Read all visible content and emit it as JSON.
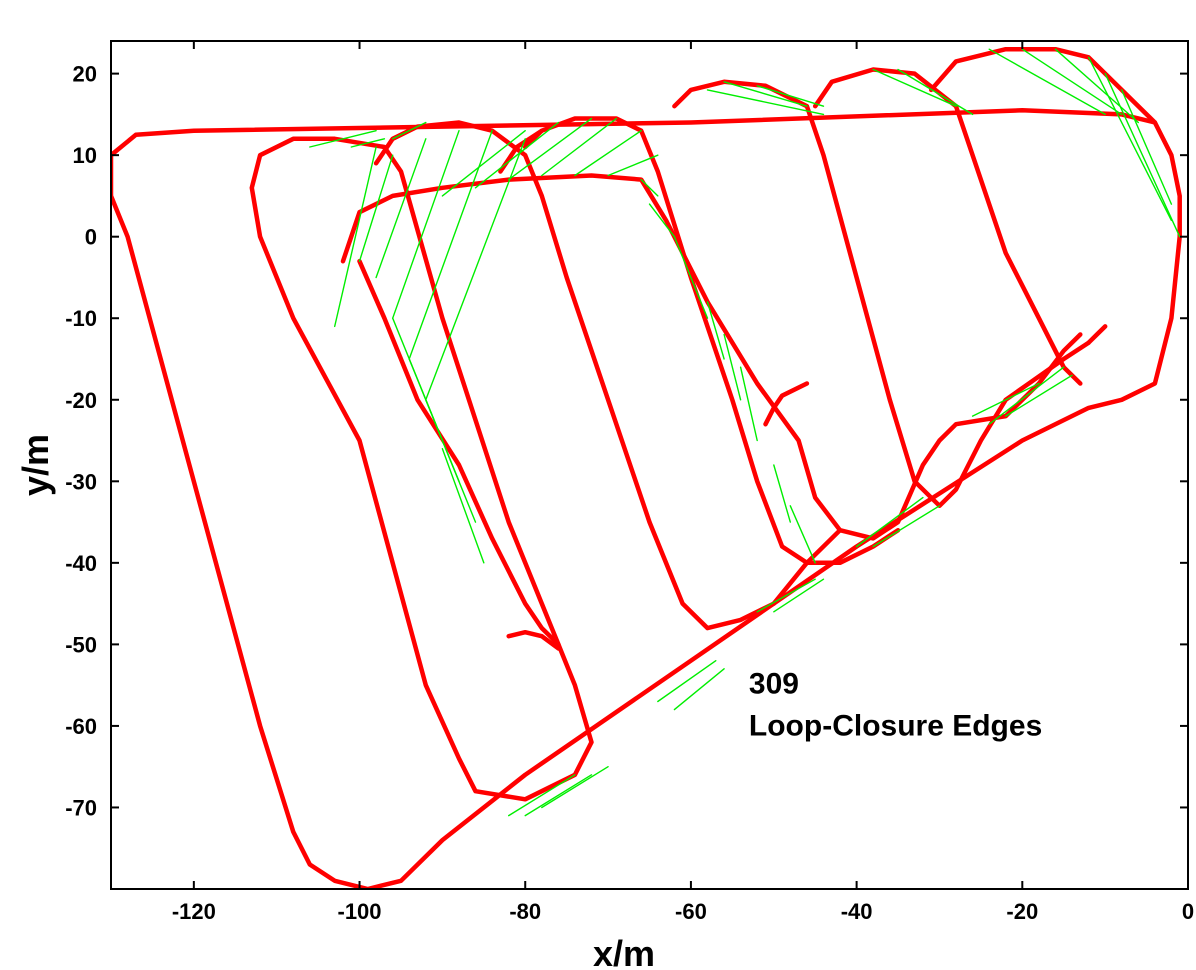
{
  "chart_data": {
    "type": "line",
    "title": "",
    "xlabel": "x/m",
    "ylabel": "y/m",
    "xlim": [
      -130,
      0
    ],
    "ylim": [
      -80,
      24
    ],
    "xticks": [
      -120,
      -100,
      -80,
      -60,
      -40,
      -20,
      0
    ],
    "yticks": [
      20,
      10,
      0,
      -10,
      -20,
      -30,
      -40,
      -50,
      -60,
      -70
    ],
    "grid": false,
    "legend": "none",
    "annotation": {
      "count": "309",
      "label": "Loop-Closure Edges",
      "x": -53,
      "y": -56
    },
    "series": [
      {
        "color": "#ff0000",
        "segments": [
          [
            [
              -130,
              10
            ],
            [
              -127,
              12.5
            ],
            [
              -120,
              13
            ],
            [
              -60,
              14
            ],
            [
              -20,
              15.5
            ],
            [
              -8,
              15
            ],
            [
              -4,
              14
            ],
            [
              -2,
              10
            ],
            [
              -1,
              5
            ],
            [
              -1,
              0
            ],
            [
              -2,
              -10
            ],
            [
              -4,
              -18
            ],
            [
              -8,
              -20
            ],
            [
              -12,
              -21
            ],
            [
              -20,
              -25
            ],
            [
              -40,
              -38
            ],
            [
              -60,
              -52
            ],
            [
              -80,
              -66
            ],
            [
              -90,
              -74
            ],
            [
              -95,
              -79
            ],
            [
              -99,
              -80
            ],
            [
              -103,
              -79
            ],
            [
              -106,
              -77
            ],
            [
              -108,
              -73
            ],
            [
              -112,
              -60
            ],
            [
              -120,
              -30
            ],
            [
              -128,
              0
            ],
            [
              -130,
              5
            ],
            [
              -130,
              10
            ]
          ],
          [
            [
              -113,
              6
            ],
            [
              -112,
              10
            ],
            [
              -108,
              12
            ],
            [
              -103,
              12
            ],
            [
              -97,
              11
            ],
            [
              -95,
              8
            ],
            [
              -90,
              -10
            ],
            [
              -82,
              -35
            ],
            [
              -78,
              -45
            ],
            [
              -76,
              -50
            ],
            [
              -74,
              -55
            ],
            [
              -72,
              -62
            ],
            [
              -74,
              -66
            ],
            [
              -80,
              -69
            ],
            [
              -86,
              -68
            ],
            [
              -88,
              -64
            ],
            [
              -92,
              -55
            ],
            [
              -100,
              -25
            ],
            [
              -108,
              -10
            ],
            [
              -112,
              0
            ],
            [
              -113,
              6
            ]
          ],
          [
            [
              -102,
              -3
            ],
            [
              -100,
              3
            ],
            [
              -96,
              5
            ],
            [
              -90,
              6
            ],
            [
              -82,
              7
            ],
            [
              -72,
              7.5
            ],
            [
              -66,
              7
            ],
            [
              -63,
              2
            ],
            [
              -58,
              -8
            ],
            [
              -52,
              -18
            ],
            [
              -47,
              -25
            ],
            [
              -45,
              -32
            ],
            [
              -42,
              -36
            ],
            [
              -38,
              -37
            ],
            [
              -35,
              -35
            ],
            [
              -32,
              -28
            ],
            [
              -30,
              -25
            ],
            [
              -28,
              -23
            ],
            [
              -22,
              -22
            ],
            [
              -18,
              -18
            ],
            [
              -15,
              -14
            ],
            [
              -13,
              -12
            ]
          ],
          [
            [
              -51,
              -23
            ],
            [
              -50,
              -21
            ],
            [
              -49,
              -19.5
            ],
            [
              -46,
              -18
            ]
          ],
          [
            [
              -82,
              -49
            ],
            [
              -80,
              -48.5
            ],
            [
              -78,
              -49
            ],
            [
              -76,
              -50.5
            ]
          ],
          [
            [
              -100,
              -3
            ],
            [
              -97,
              -10
            ],
            [
              -93,
              -20
            ],
            [
              -88,
              -28
            ],
            [
              -84,
              -37
            ],
            [
              -80,
              -45
            ],
            [
              -78,
              -48
            ],
            [
              -76,
              -50
            ]
          ],
          [
            [
              -98,
              9
            ],
            [
              -96,
              12
            ],
            [
              -93,
              13.5
            ],
            [
              -88,
              14
            ],
            [
              -84,
              13
            ],
            [
              -80,
              10
            ],
            [
              -78,
              5
            ],
            [
              -75,
              -5
            ],
            [
              -70,
              -20
            ],
            [
              -65,
              -35
            ],
            [
              -61,
              -45
            ],
            [
              -58,
              -48
            ],
            [
              -54,
              -47
            ],
            [
              -50,
              -45
            ],
            [
              -46,
              -40
            ],
            [
              -42,
              -36
            ]
          ],
          [
            [
              -80,
              11
            ],
            [
              -78,
              13
            ],
            [
              -74,
              14.5
            ],
            [
              -69,
              14.5
            ],
            [
              -66,
              13
            ],
            [
              -64,
              8
            ],
            [
              -60,
              -5
            ],
            [
              -55,
              -20
            ],
            [
              -52,
              -30
            ],
            [
              -49,
              -38
            ],
            [
              -46,
              -40
            ],
            [
              -42,
              -40
            ],
            [
              -38,
              -38
            ],
            [
              -35,
              -36
            ]
          ],
          [
            [
              -83,
              8
            ],
            [
              -81,
              11
            ],
            [
              -78,
              13
            ]
          ],
          [
            [
              -62,
              16
            ],
            [
              -60,
              18
            ],
            [
              -56,
              19
            ],
            [
              -51,
              18.5
            ],
            [
              -46,
              16
            ],
            [
              -44,
              10
            ],
            [
              -40,
              -5
            ],
            [
              -36,
              -20
            ],
            [
              -33,
              -30
            ],
            [
              -30,
              -33
            ],
            [
              -28,
              -31
            ],
            [
              -25,
              -25
            ],
            [
              -22,
              -20
            ],
            [
              -15,
              -15
            ],
            [
              -12,
              -13
            ]
          ],
          [
            [
              -45,
              16
            ],
            [
              -43,
              19
            ],
            [
              -38,
              20.5
            ],
            [
              -33,
              20
            ],
            [
              -28,
              16
            ],
            [
              -26,
              10
            ],
            [
              -22,
              -2
            ],
            [
              -18,
              -10
            ],
            [
              -15,
              -16
            ],
            [
              -13,
              -18
            ]
          ],
          [
            [
              -31,
              18
            ],
            [
              -28,
              21.5
            ],
            [
              -22,
              23
            ],
            [
              -16,
              23
            ],
            [
              -12,
              22
            ],
            [
              -8,
              18
            ],
            [
              -4,
              14
            ]
          ],
          [
            [
              -12,
              -13
            ],
            [
              -11,
              -12
            ],
            [
              -10,
              -11
            ]
          ]
        ]
      },
      {
        "color": "#00ee00",
        "segments": [
          [
            [
              -103,
              -11
            ],
            [
              -98,
              11
            ]
          ],
          [
            [
              -100,
              -3
            ],
            [
              -96,
              10
            ]
          ],
          [
            [
              -98,
              -5
            ],
            [
              -92,
              12
            ]
          ],
          [
            [
              -96,
              -10
            ],
            [
              -88,
              13
            ]
          ],
          [
            [
              -94,
              -15
            ],
            [
              -84,
              13
            ]
          ],
          [
            [
              -92,
              -20
            ],
            [
              -80,
              12
            ]
          ],
          [
            [
              -90,
              -25
            ],
            [
              -96,
              -10
            ]
          ],
          [
            [
              -88,
              -30
            ],
            [
              -94,
              -15
            ]
          ],
          [
            [
              -86,
              -35
            ],
            [
              -92,
              -20
            ]
          ],
          [
            [
              -85,
              -40
            ],
            [
              -90,
              -26
            ]
          ],
          [
            [
              -106,
              11
            ],
            [
              -98,
              13
            ]
          ],
          [
            [
              -101,
              11
            ],
            [
              -97,
              12
            ]
          ],
          [
            [
              -96,
              12
            ],
            [
              -92,
              14
            ]
          ],
          [
            [
              -90,
              5
            ],
            [
              -80,
              13
            ]
          ],
          [
            [
              -86,
              6
            ],
            [
              -76,
              14
            ]
          ],
          [
            [
              -82,
              7
            ],
            [
              -72,
              14.5
            ]
          ],
          [
            [
              -78,
              7.5
            ],
            [
              -69,
              14.5
            ]
          ],
          [
            [
              -74,
              7.5
            ],
            [
              -66,
              13
            ]
          ],
          [
            [
              -70,
              7.5
            ],
            [
              -64,
              10
            ]
          ],
          [
            [
              -66,
              7
            ],
            [
              -64,
              5
            ]
          ],
          [
            [
              -65,
              4
            ],
            [
              -62,
              0
            ]
          ],
          [
            [
              -62,
              0
            ],
            [
              -60,
              -5
            ]
          ],
          [
            [
              -60,
              -5
            ],
            [
              -58,
              -10
            ]
          ],
          [
            [
              -58,
              -8
            ],
            [
              -56,
              -15
            ]
          ],
          [
            [
              -56,
              -12
            ],
            [
              -54,
              -20
            ]
          ],
          [
            [
              -54,
              -16
            ],
            [
              -52,
              -25
            ]
          ],
          [
            [
              -50,
              -28
            ],
            [
              -48,
              -35
            ]
          ],
          [
            [
              -48,
              -33
            ],
            [
              -45,
              -40
            ]
          ],
          [
            [
              -56,
              19
            ],
            [
              -46,
              16
            ]
          ],
          [
            [
              -58,
              18
            ],
            [
              -44,
              15
            ]
          ],
          [
            [
              -52,
              18.5
            ],
            [
              -44,
              16
            ]
          ],
          [
            [
              -38,
              20.5
            ],
            [
              -28,
              16
            ]
          ],
          [
            [
              -35,
              20.5
            ],
            [
              -26,
              15
            ]
          ],
          [
            [
              -24,
              23
            ],
            [
              -10,
              15
            ]
          ],
          [
            [
              -20,
              23
            ],
            [
              -8,
              15
            ]
          ],
          [
            [
              -16,
              23
            ],
            [
              -6,
              14
            ]
          ],
          [
            [
              -12,
              22
            ],
            [
              -2,
              2
            ]
          ],
          [
            [
              -10,
              20
            ],
            [
              -1,
              0
            ]
          ],
          [
            [
              -8,
              18
            ],
            [
              -2,
              4
            ]
          ],
          [
            [
              -26,
              -22
            ],
            [
              -18,
              -18
            ]
          ],
          [
            [
              -24,
              -23
            ],
            [
              -15,
              -16
            ]
          ],
          [
            [
              -22,
              -22
            ],
            [
              -14,
              -17
            ]
          ],
          [
            [
              -40,
              -38
            ],
            [
              -32,
              -32
            ]
          ],
          [
            [
              -38,
              -38
            ],
            [
              -30,
              -33
            ]
          ],
          [
            [
              -52,
              -46
            ],
            [
              -45,
              -42
            ]
          ],
          [
            [
              -50,
              -46
            ],
            [
              -44,
              -42
            ]
          ],
          [
            [
              -64,
              -57
            ],
            [
              -57,
              -52
            ]
          ],
          [
            [
              -62,
              -58
            ],
            [
              -56,
              -53
            ]
          ],
          [
            [
              -82,
              -71
            ],
            [
              -74,
              -66
            ]
          ],
          [
            [
              -80,
              -71
            ],
            [
              -72,
              -66
            ]
          ],
          [
            [
              -78,
              -70
            ],
            [
              -70,
              -65
            ]
          ]
        ]
      }
    ]
  }
}
